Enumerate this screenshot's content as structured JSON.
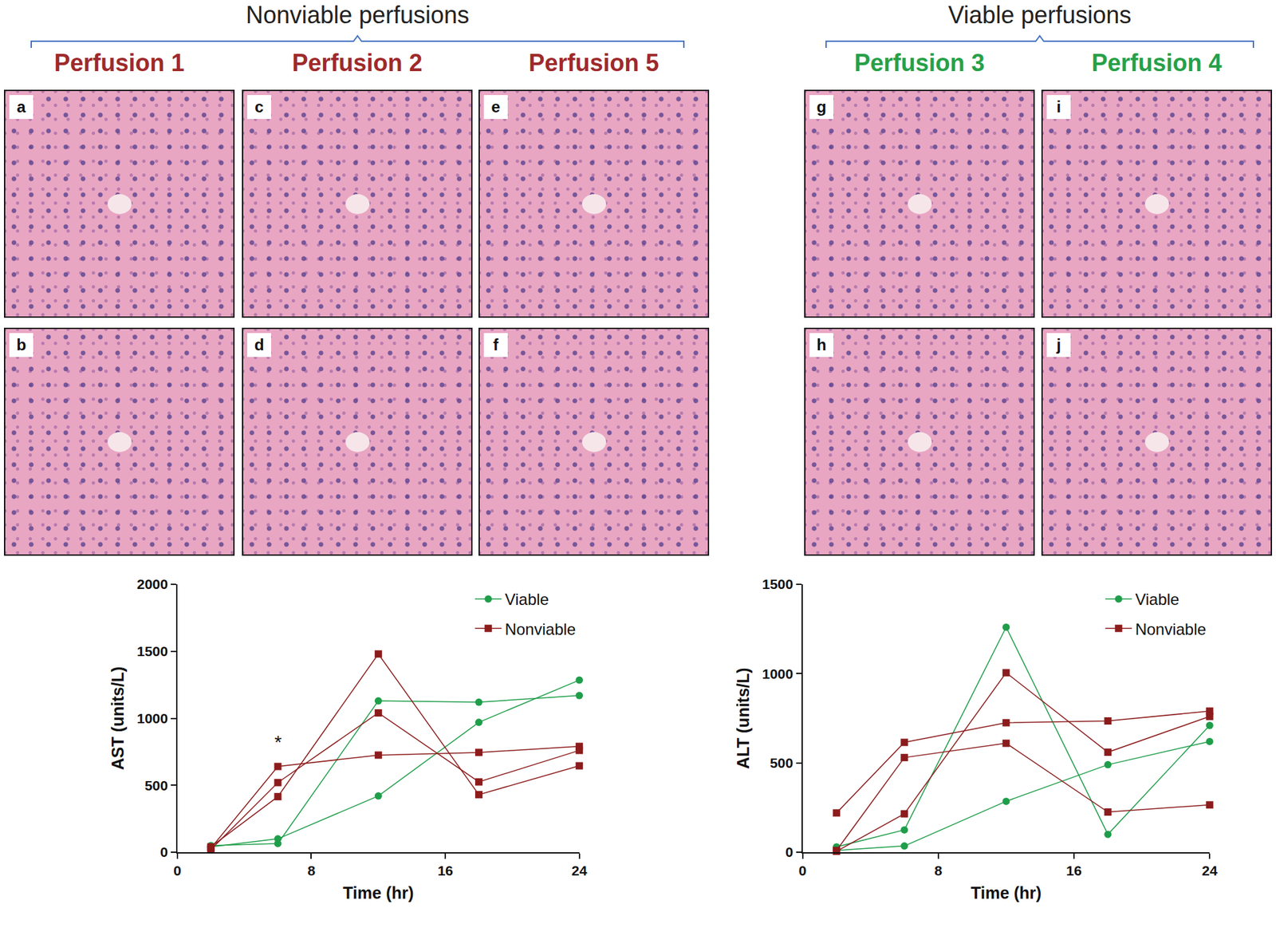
{
  "panels": {
    "groups": [
      {
        "title": "Nonviable perfusions",
        "color": "#9e2a2b",
        "columns": [
          {
            "label": "Perfusion 1",
            "panels": [
              "a",
              "b"
            ]
          },
          {
            "label": "Perfusion 2",
            "panels": [
              "c",
              "d"
            ]
          },
          {
            "label": "Perfusion 5",
            "panels": [
              "e",
              "f"
            ]
          }
        ]
      },
      {
        "title": "Viable perfusions",
        "color": "#27a048",
        "columns": [
          {
            "label": "Perfusion 3",
            "panels": [
              "g",
              "h"
            ]
          },
          {
            "label": "Perfusion 4",
            "panels": [
              "i",
              "j"
            ]
          }
        ]
      }
    ]
  },
  "chart_data": [
    {
      "type": "line",
      "x_label": "Time (hr)",
      "y_label": "AST (units/L)",
      "xlim": [
        0,
        24
      ],
      "xticks": [
        0,
        8,
        16,
        24
      ],
      "ylim": [
        0,
        2000
      ],
      "yticks": [
        0,
        500,
        1000,
        1500,
        2000
      ],
      "grid": false,
      "legend": "upper right",
      "x": [
        2,
        6,
        12,
        18,
        24
      ],
      "series": [
        {
          "name": "Viable",
          "color": "#1f9e4a",
          "marker": "circle",
          "values": [
            50,
            65,
            1130,
            1120,
            1170
          ]
        },
        {
          "name": "Viable",
          "color": "#1f9e4a",
          "marker": "circle",
          "values": [
            40,
            100,
            420,
            970,
            1285
          ]
        },
        {
          "name": "Nonviable",
          "color": "#8c1c1c",
          "marker": "square",
          "values": [
            30,
            640,
            725,
            745,
            790
          ]
        },
        {
          "name": "Nonviable",
          "color": "#8c1c1c",
          "marker": "square",
          "values": [
            20,
            520,
            1040,
            525,
            760
          ]
        },
        {
          "name": "Nonviable",
          "color": "#8c1c1c",
          "marker": "square",
          "values": [
            40,
            415,
            1480,
            430,
            645
          ]
        }
      ],
      "annotations": [
        {
          "text": "*",
          "x": 6,
          "y": 820
        }
      ]
    },
    {
      "type": "line",
      "x_label": "Time (hr)",
      "y_label": "ALT (units/L)",
      "xlim": [
        0,
        24
      ],
      "xticks": [
        0,
        8,
        16,
        24
      ],
      "ylim": [
        0,
        1500
      ],
      "yticks": [
        0,
        500,
        1000,
        1500
      ],
      "grid": false,
      "legend": "upper right",
      "x": [
        2,
        6,
        12,
        18,
        24
      ],
      "series": [
        {
          "name": "Viable",
          "color": "#1f9e4a",
          "marker": "circle",
          "values": [
            30,
            125,
            1260,
            100,
            710
          ]
        },
        {
          "name": "Viable",
          "color": "#1f9e4a",
          "marker": "circle",
          "values": [
            10,
            35,
            285,
            490,
            620
          ]
        },
        {
          "name": "Nonviable",
          "color": "#8c1c1c",
          "marker": "square",
          "values": [
            220,
            615,
            725,
            735,
            790
          ]
        },
        {
          "name": "Nonviable",
          "color": "#8c1c1c",
          "marker": "square",
          "values": [
            10,
            530,
            610,
            225,
            265
          ]
        },
        {
          "name": "Nonviable",
          "color": "#8c1c1c",
          "marker": "square",
          "values": [
            5,
            215,
            1005,
            560,
            760
          ]
        }
      ]
    }
  ]
}
